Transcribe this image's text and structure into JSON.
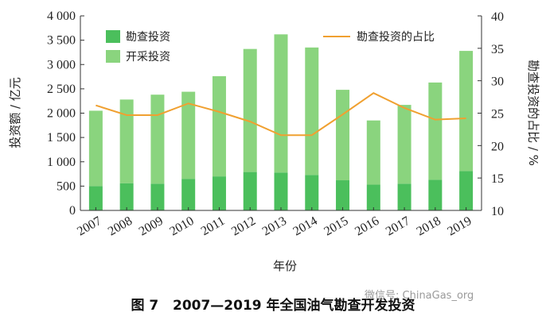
{
  "figure": {
    "label": "图 7",
    "title": "2007—2019 年全国油气勘查开发投资",
    "watermark": "微信号: ChinaGas_org"
  },
  "chart_data": {
    "type": "bar",
    "stacked": true,
    "categories": [
      "2007",
      "2008",
      "2009",
      "2010",
      "2011",
      "2012",
      "2013",
      "2014",
      "2015",
      "2016",
      "2017",
      "2018",
      "2019"
    ],
    "series": [
      {
        "name": "勘查投资",
        "axis": "left",
        "color": "#4bbf5c",
        "values": [
          500,
          560,
          550,
          650,
          700,
          790,
          780,
          730,
          620,
          530,
          550,
          630,
          810
        ]
      },
      {
        "name": "开采投资",
        "axis": "left",
        "color": "#8ad47e",
        "values": [
          1550,
          1720,
          1830,
          1790,
          2060,
          2530,
          2840,
          2620,
          1860,
          1320,
          1620,
          2000,
          2470
        ]
      },
      {
        "name": "勘查投资的占比",
        "type": "line",
        "axis": "right",
        "color": "#f0a030",
        "values": [
          26.2,
          24.7,
          24.7,
          26.5,
          25.2,
          23.7,
          21.6,
          21.6,
          24.8,
          28.1,
          25.8,
          24.0,
          24.2
        ]
      }
    ],
    "xlabel": "年份",
    "ylabel": "投资额 / 亿元",
    "y2label": "勘查投资的占比 / %",
    "ylim": [
      0,
      4000
    ],
    "y2lim": [
      10,
      40
    ],
    "yticks": [
      "0",
      "500",
      "1 000",
      "1 500",
      "2 000",
      "2 500",
      "3 000",
      "3 500",
      "4 000"
    ],
    "y2ticks": [
      "10",
      "15",
      "20",
      "25",
      "30",
      "35",
      "40"
    ],
    "legend": {
      "bars": [
        "勘查投资",
        "开采投资"
      ],
      "line": "勘查投资的占比"
    }
  }
}
